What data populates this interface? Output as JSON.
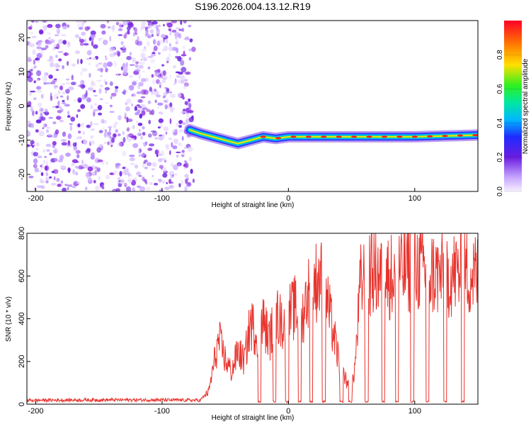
{
  "title": "S196.2026.004.13.12.R19",
  "colors": {
    "signal_line": "#e8342e",
    "scatter_cloud": "#8a2be2",
    "frame": "#000000"
  },
  "chart_data": [
    {
      "type": "heatmap",
      "name": "spectrogram",
      "xlabel": "Height of straight line (km)",
      "ylabel": "Frequency (Hz)",
      "xlim": [
        -207,
        150
      ],
      "ylim": [
        -25,
        25
      ],
      "x_ticks": [
        -200,
        -100,
        0,
        100
      ],
      "y_ticks": [
        20,
        10,
        0,
        -10,
        -20
      ],
      "trace_centerline": [
        {
          "x": -78,
          "y": -7
        },
        {
          "x": -70,
          "y": -8
        },
        {
          "x": -60,
          "y": -9
        },
        {
          "x": -50,
          "y": -10
        },
        {
          "x": -40,
          "y": -11
        },
        {
          "x": -30,
          "y": -10
        },
        {
          "x": -20,
          "y": -9
        },
        {
          "x": -10,
          "y": -9.5
        },
        {
          "x": 0,
          "y": -9
        },
        {
          "x": 20,
          "y": -9
        },
        {
          "x": 50,
          "y": -9
        },
        {
          "x": 100,
          "y": -9
        },
        {
          "x": 150,
          "y": -8.5
        }
      ],
      "colorbar": {
        "label": "Normalized spectral amplitude",
        "ticks": [
          "0.0",
          "0.2",
          "0.4",
          "0.6",
          "0.8"
        ],
        "tick_values": [
          0,
          0.2,
          0.4,
          0.6,
          0.8
        ],
        "range": [
          0,
          1
        ]
      }
    },
    {
      "type": "line",
      "name": "snr",
      "xlabel": "Height of straight line (km)",
      "ylabel": "SNR (10 * v/v)",
      "xlim": [
        -207,
        150
      ],
      "ylim": [
        0,
        800
      ],
      "x_ticks": [
        -200,
        -100,
        0,
        100
      ],
      "y_ticks": [
        0,
        200,
        400,
        600,
        800
      ],
      "series": [
        {
          "name": "SNR",
          "points": [
            {
              "x": -207,
              "y": 18
            },
            {
              "x": -150,
              "y": 20
            },
            {
              "x": -100,
              "y": 20
            },
            {
              "x": -70,
              "y": 18
            },
            {
              "x": -63,
              "y": 60
            },
            {
              "x": -58,
              "y": 220
            },
            {
              "x": -55,
              "y": 300
            },
            {
              "x": -50,
              "y": 210
            },
            {
              "x": -45,
              "y": 150
            },
            {
              "x": -40,
              "y": 250
            },
            {
              "x": -35,
              "y": 200
            },
            {
              "x": -30,
              "y": 380
            },
            {
              "x": -25,
              "y": 330
            },
            {
              "x": -20,
              "y": 390
            },
            {
              "x": -15,
              "y": 300
            },
            {
              "x": -10,
              "y": 420
            },
            {
              "x": -5,
              "y": 380
            },
            {
              "x": 5,
              "y": 450
            },
            {
              "x": 10,
              "y": 380
            },
            {
              "x": 15,
              "y": 520
            },
            {
              "x": 20,
              "y": 560
            },
            {
              "x": 25,
              "y": 600
            },
            {
              "x": 30,
              "y": 500
            },
            {
              "x": 35,
              "y": 350
            },
            {
              "x": 40,
              "y": 200
            },
            {
              "x": 45,
              "y": 120
            },
            {
              "x": 50,
              "y": 60
            },
            {
              "x": 53,
              "y": 200
            },
            {
              "x": 57,
              "y": 560
            },
            {
              "x": 65,
              "y": 620
            },
            {
              "x": 80,
              "y": 600
            },
            {
              "x": 100,
              "y": 650
            },
            {
              "x": 120,
              "y": 600
            },
            {
              "x": 140,
              "y": 620
            },
            {
              "x": 150,
              "y": 600
            }
          ]
        }
      ]
    }
  ]
}
